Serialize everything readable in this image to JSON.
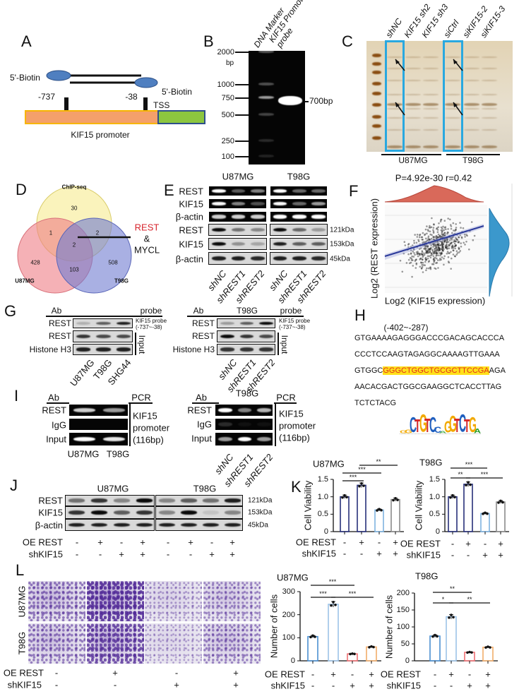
{
  "panels": {
    "A": {
      "label": "A",
      "biotin_left": "5'-Biotin",
      "biotin_right": "5'-Biotin",
      "pos_left": "-737",
      "pos_right": "-38",
      "tss": "TSS",
      "promoter": "KIF15 promoter"
    },
    "B": {
      "label": "B",
      "lanes": [
        "DNA Marker",
        "KIF15 Promoter probe"
      ],
      "ladder": [
        "2000",
        "1000",
        "750",
        "500",
        "250",
        "100"
      ],
      "ladder_unit": "bp",
      "band_label": "700bp"
    },
    "C": {
      "label": "C",
      "lanes": [
        "shNC",
        "KIF15 sh2",
        "KIF15 sh3",
        "siCtrl",
        "siKIF15-2",
        "siKIF15-3"
      ],
      "groups": [
        "U87MG",
        "T98G"
      ]
    },
    "D": {
      "label": "D",
      "sets": [
        "ChIP-seq",
        "U87MG",
        "T98G"
      ],
      "counts": {
        "chip_only": "30",
        "u87_only": "428",
        "t98_only": "508",
        "chip_u87": "1",
        "chip_t98": "2",
        "u87_t98": "103",
        "all": "2"
      },
      "callout": {
        "gene1": "REST",
        "amp": "&",
        "gene2": "MYCL"
      },
      "colors": {
        "chip": "#f7eb8f",
        "u87": "#ee7d86",
        "t98": "#6f7bd0",
        "callout": "#d7242c"
      }
    },
    "E": {
      "label": "E",
      "groups": [
        "U87MG",
        "T98G"
      ],
      "rows": [
        "REST",
        "KIF15",
        "β-actin",
        "REST",
        "KIF15",
        "β-actin"
      ],
      "kda": [
        "121kDa",
        "153kDa",
        "45kDa"
      ],
      "lanes": [
        "shNC",
        "shREST1",
        "shREST2",
        "shNC",
        "shREST1",
        "shREST2"
      ]
    },
    "F": {
      "label": "F",
      "stats": "P=4.92e-30  r=0.42",
      "xlabel": "Log2 (KIF15 expression)",
      "ylabel": "Log2 (REST expression)",
      "colors": {
        "top_density": "#d9695a",
        "right_density": "#3b98cc",
        "fit": "#2b3a9a"
      }
    },
    "G": {
      "label": "G",
      "left": {
        "ab": "Ab",
        "probe": "probe",
        "rows": [
          "REST",
          "REST",
          "Histone H3"
        ],
        "probe_note": [
          "KIF15 probe",
          "(-737~-38)"
        ],
        "input": "Input",
        "lanes": [
          "U87MG",
          "T98G",
          "SHG44"
        ]
      },
      "right": {
        "ab": "Ab",
        "group": "T98G",
        "probe": "probe",
        "rows": [
          "REST",
          "REST",
          "Histone H3"
        ],
        "probe_note": [
          "KIF15 probe",
          "(-737~-38)"
        ],
        "input": "Input",
        "lanes": [
          "shNC",
          "shREST1",
          "shREST2"
        ]
      }
    },
    "H": {
      "label": "H",
      "range": "(-402~-287)",
      "lines": [
        "GTGAAAAGAGGGACCCGACAGCACCCA",
        "CCCTCCAAGTAGAGGCAAAAGTTGAAA",
        "AACACGACTGGCGAAGGCTCACCTTAG",
        "TCTCTACG"
      ],
      "line3_pre": "GTGGC",
      "line3_highlight": "GGGCTGGCTGCGCTTCCGA",
      "line3_post": "AGA",
      "logo": "GGCTGTCCAGGTCTGA",
      "highlight_color": "#ffe01a"
    },
    "I": {
      "label": "I",
      "left": {
        "ab": "Ab",
        "pcr": "PCR",
        "rows": [
          "REST",
          "IgG",
          "Input"
        ],
        "target": [
          "KIF15",
          "promoter",
          "(116bp)"
        ],
        "lanes": [
          "U87MG",
          "T98G"
        ]
      },
      "right": {
        "ab": "Ab",
        "group": "T98G",
        "pcr": "PCR",
        "rows": [
          "REST",
          "IgG",
          "Input"
        ],
        "target": [
          "KIF15",
          "promoter",
          "(116bp)"
        ],
        "lanes": [
          "shNC",
          "shREST1",
          "shREST2"
        ]
      }
    },
    "J": {
      "label": "J",
      "groups": [
        "U87MG",
        "T98G"
      ],
      "rows": [
        "REST",
        "KIF15",
        "β-actin"
      ],
      "kda": [
        "121kDa",
        "153kDa",
        "45kDa"
      ],
      "conditions": [
        {
          "name": "OE REST",
          "values": [
            "-",
            "+",
            "-",
            "+",
            "-",
            "+",
            "-",
            "+"
          ]
        },
        {
          "name": "shKIF15",
          "values": [
            "-",
            "-",
            "+",
            "+",
            "-",
            "-",
            "+",
            "+"
          ]
        }
      ]
    },
    "K": {
      "label": "K"
    },
    "L": {
      "label": "L",
      "rows": [
        "U87MG",
        "T98G"
      ],
      "conditions": [
        {
          "name": "OE REST",
          "values": [
            "-",
            "+",
            "-",
            "+"
          ]
        },
        {
          "name": "shKIF15",
          "values": [
            "-",
            "-",
            "+",
            "+"
          ]
        }
      ]
    }
  },
  "chart_data": [
    {
      "id": "K-U87MG",
      "type": "bar",
      "title": "U87MG",
      "ylabel": "Cell Viability",
      "ylim": [
        0,
        1.5
      ],
      "yticks": [
        "0",
        "0.5",
        "1.0",
        "1.5"
      ],
      "values": [
        1.0,
        1.33,
        0.62,
        0.92
      ],
      "conditions": [
        {
          "name": "OE REST",
          "values": [
            "-",
            "+",
            "-",
            "+"
          ]
        },
        {
          "name": "shKIF15",
          "values": [
            "-",
            "-",
            "+",
            "+"
          ]
        }
      ],
      "colors": [
        "#27307a",
        "#27307a",
        "#7fb3df",
        "#8a8a8a"
      ],
      "fill": "none",
      "significance": [
        {
          "from": 0,
          "to": 1,
          "label": "***",
          "level": 1
        },
        {
          "from": 0,
          "to": 2,
          "label": "***",
          "level": 2
        },
        {
          "from": 1,
          "to": 3,
          "label": "**",
          "level": 3
        }
      ]
    },
    {
      "id": "K-T98G",
      "type": "bar",
      "title": "T98G",
      "ylabel": "Cell Viability",
      "ylim": [
        0,
        1.5
      ],
      "yticks": [
        "0",
        "0.5",
        "1.0",
        "1.5"
      ],
      "values": [
        1.0,
        1.36,
        0.52,
        0.85
      ],
      "conditions": [
        {
          "name": "OE REST",
          "values": [
            "-",
            "+",
            "-",
            "+"
          ]
        },
        {
          "name": "shKIF15",
          "values": [
            "-",
            "-",
            "+",
            "+"
          ]
        }
      ],
      "colors": [
        "#27307a",
        "#27307a",
        "#7fb3df",
        "#8a8a8a"
      ],
      "fill": "none",
      "significance": [
        {
          "from": 0,
          "to": 1,
          "label": "**",
          "level": 1
        },
        {
          "from": 1,
          "to": 3,
          "label": "***",
          "level": 1
        },
        {
          "from": 0,
          "to": 2,
          "label": "***",
          "level": 2
        }
      ]
    },
    {
      "id": "L-U87MG",
      "type": "bar",
      "title": "U87MG",
      "ylabel": "Number of cells",
      "ylim": [
        0,
        300
      ],
      "yticks": [
        "0",
        "100",
        "200",
        "300"
      ],
      "values": [
        105,
        245,
        30,
        60
      ],
      "conditions": [
        {
          "name": "OE REST",
          "values": [
            "-",
            "+",
            "-",
            "+"
          ]
        },
        {
          "name": "shKIF15",
          "values": [
            "-",
            "-",
            "+",
            "+"
          ]
        }
      ],
      "colors": [
        "#4b8fd1",
        "#9cc3e8",
        "#ee6f73",
        "#f2ad6b"
      ],
      "fill": "none",
      "significance": [
        {
          "from": 0,
          "to": 1,
          "label": "***",
          "level": 1
        },
        {
          "from": 1,
          "to": 3,
          "label": "***",
          "level": 1
        },
        {
          "from": 0,
          "to": 2,
          "label": "***",
          "level": 2
        }
      ]
    },
    {
      "id": "L-T98G",
      "type": "bar",
      "title": "T98G",
      "ylabel": "Number of cells",
      "ylim": [
        0,
        200
      ],
      "yticks": [
        "0",
        "50",
        "100",
        "150",
        "200"
      ],
      "values": [
        73,
        130,
        25,
        40
      ],
      "conditions": [
        {
          "name": "OE REST",
          "values": [
            "-",
            "+",
            "-",
            "+"
          ]
        },
        {
          "name": "shKIF15",
          "values": [
            "-",
            "-",
            "+",
            "+"
          ]
        }
      ],
      "colors": [
        "#4b8fd1",
        "#9cc3e8",
        "#ee6f73",
        "#f2ad6b"
      ],
      "fill": "none",
      "significance": [
        {
          "from": 0,
          "to": 1,
          "label": "*",
          "level": 1
        },
        {
          "from": 1,
          "to": 3,
          "label": "**",
          "level": 1
        },
        {
          "from": 0,
          "to": 2,
          "label": "**",
          "level": 2
        }
      ]
    }
  ]
}
